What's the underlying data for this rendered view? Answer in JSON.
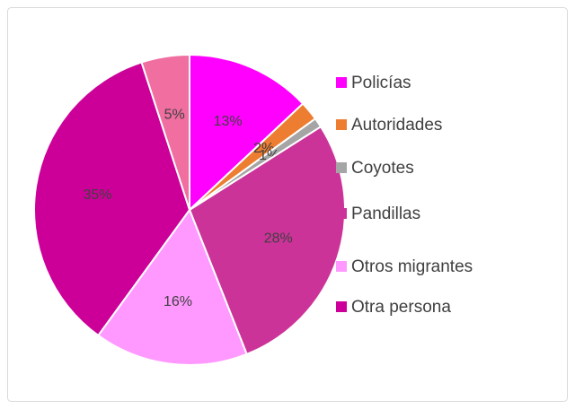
{
  "chart_data": {
    "type": "pie",
    "categories": [
      "Policías",
      "Autoridades",
      "Coyotes",
      "Pandillas",
      "Otros migrantes",
      "Otra persona",
      null
    ],
    "values": [
      13,
      2,
      1,
      28,
      16,
      35,
      5
    ],
    "value_labels": [
      "13%",
      "2%",
      "1%",
      "28%",
      "16%",
      "35%",
      "5%"
    ],
    "colors": [
      "#ff00ff",
      "#ed7d31",
      "#a5a5a5",
      "#cc3399",
      "#ff99ff",
      "#cc0099",
      "#f06ea0"
    ],
    "legend": "right"
  }
}
